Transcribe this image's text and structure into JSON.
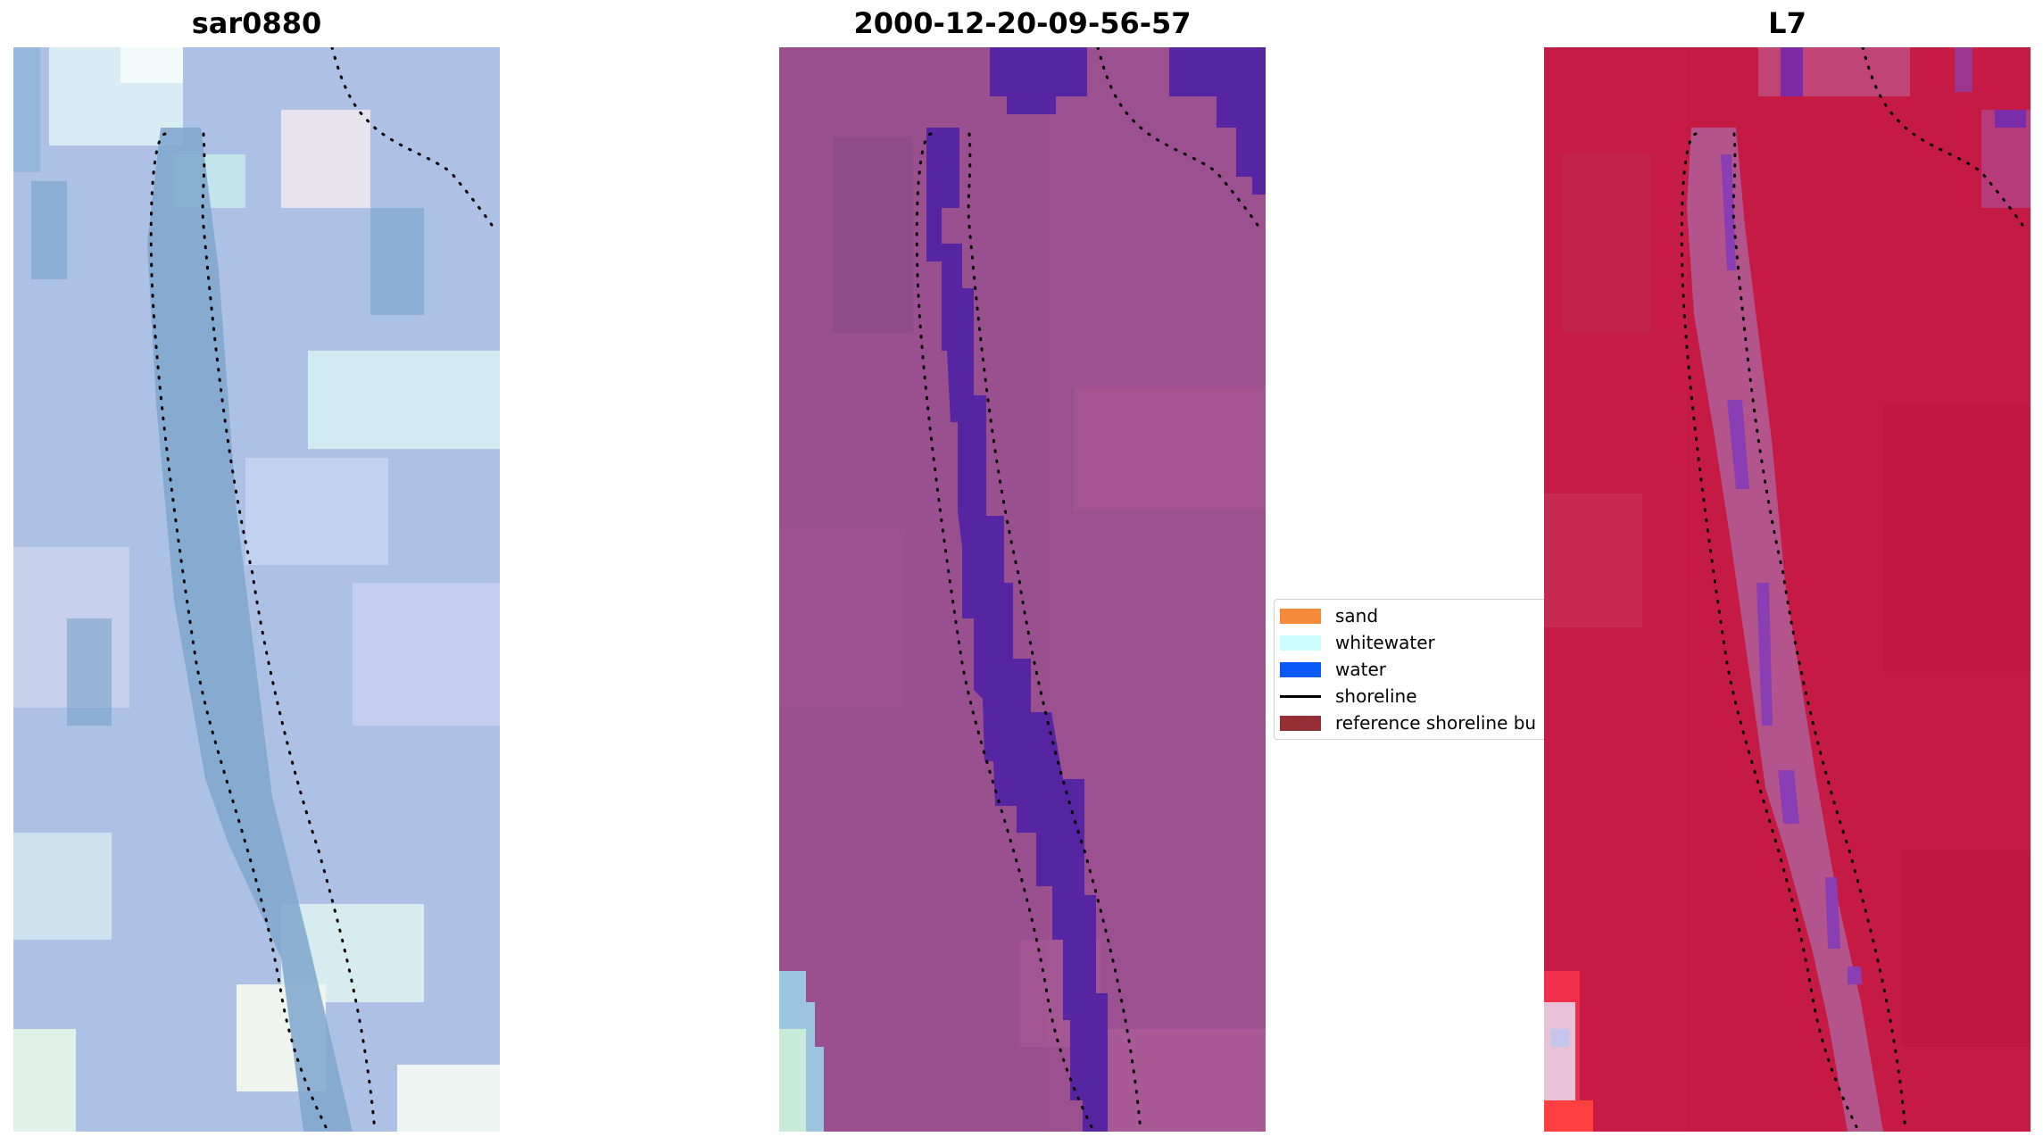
{
  "panels": [
    {
      "title": "sar0880",
      "icon": "rgb-satellite-image"
    },
    {
      "title": "2000-12-20-09-56-57",
      "icon": "classified-satellite-image"
    },
    {
      "title": "L7",
      "icon": "index-satellite-image"
    }
  ],
  "legend": {
    "items": [
      {
        "label": "sand",
        "color": "#f58a3b",
        "kind": "patch"
      },
      {
        "label": "whitewater",
        "color": "#ccfcfc",
        "kind": "patch"
      },
      {
        "label": "water",
        "color": "#0a59f5",
        "kind": "patch"
      },
      {
        "label": "shoreline",
        "color": "#000000",
        "kind": "line"
      },
      {
        "label": "reference shoreline bu",
        "color": "#962e35",
        "kind": "patch"
      }
    ]
  },
  "colors": {
    "panel1_base": "#a6bedf",
    "panel2_base": "#9a4f8e",
    "panel2_water": "#5625a2",
    "panel3_base": "#c41a44",
    "panel3_channel": "#b3558c"
  }
}
